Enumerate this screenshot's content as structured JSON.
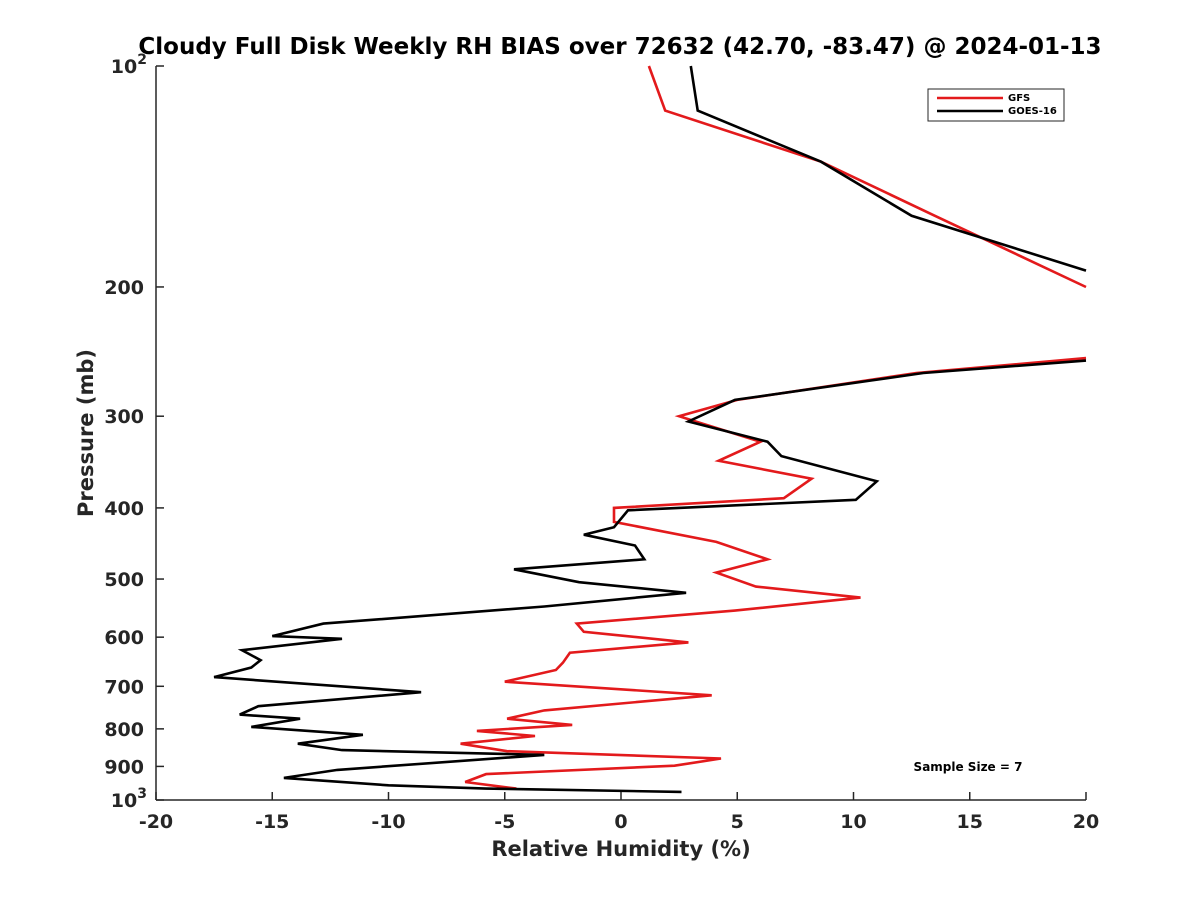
{
  "chart_data": {
    "type": "line",
    "title": "Cloudy Full Disk Weekly RH BIAS over 72632 (42.70, -83.47) @ 2024-01-13",
    "xlabel": "Relative Humidity (%)",
    "ylabel": "Pressure (mb)",
    "xlim": [
      -20,
      20
    ],
    "ylim": [
      100,
      1000
    ],
    "y_scale": "log",
    "y_reversed": true,
    "grid": false,
    "legend_position": "top-right",
    "x_ticks": [
      {
        "value": -20,
        "label": "-20"
      },
      {
        "value": -15,
        "label": "-15"
      },
      {
        "value": -10,
        "label": "-10"
      },
      {
        "value": -5,
        "label": "-5"
      },
      {
        "value": 0,
        "label": "0"
      },
      {
        "value": 5,
        "label": "5"
      },
      {
        "value": 10,
        "label": "10"
      },
      {
        "value": 15,
        "label": "15"
      },
      {
        "value": 20,
        "label": "20"
      }
    ],
    "y_ticks": [
      {
        "value": 100,
        "base": "10",
        "exp": "2"
      },
      {
        "value": 200,
        "base": "200",
        "exp": ""
      },
      {
        "value": 300,
        "base": "300",
        "exp": ""
      },
      {
        "value": 400,
        "base": "400",
        "exp": ""
      },
      {
        "value": 500,
        "base": "500",
        "exp": ""
      },
      {
        "value": 600,
        "base": "600",
        "exp": ""
      },
      {
        "value": 700,
        "base": "700",
        "exp": ""
      },
      {
        "value": 800,
        "base": "800",
        "exp": ""
      },
      {
        "value": 900,
        "base": "900",
        "exp": ""
      },
      {
        "value": 1000,
        "base": "10",
        "exp": "3"
      }
    ],
    "annotation": "Sample Size = 7",
    "series": [
      {
        "name": "GFS",
        "color": "#e31a1c",
        "segments": [
          [
            [
              1.2,
              100
            ],
            [
              1.9,
              115
            ],
            [
              8.6,
              135
            ],
            [
              13.5,
              160
            ],
            [
              20,
              200
            ]
          ],
          [
            [
              20,
              250
            ],
            [
              12.7,
              262
            ],
            [
              5.0,
              285
            ],
            [
              2.5,
              300
            ],
            [
              3.5,
              307
            ],
            [
              6,
              325
            ],
            [
              4.2,
              345
            ],
            [
              8.2,
              365
            ],
            [
              7,
              388
            ],
            [
              -0.3,
              400
            ],
            [
              -0.3,
              418
            ],
            [
              4.1,
              445
            ],
            [
              6.3,
              470
            ],
            [
              4.1,
              490
            ],
            [
              5.8,
              512
            ],
            [
              10.3,
              530
            ],
            [
              4.9,
              552
            ],
            [
              -1.9,
              575
            ],
            [
              -1.6,
              590
            ],
            [
              2.9,
              610
            ],
            [
              -2.2,
              630
            ],
            [
              -2.5,
              650
            ],
            [
              -2.8,
              665
            ],
            [
              -5,
              690
            ],
            [
              3.9,
              720
            ],
            [
              -3.3,
              755
            ],
            [
              -4.9,
              775
            ],
            [
              -2.1,
              790
            ],
            [
              -6.2,
              805
            ],
            [
              -3.7,
              818
            ],
            [
              -6.9,
              838
            ],
            [
              -4.9,
              858
            ],
            [
              4.3,
              878
            ],
            [
              2.3,
              898
            ],
            [
              -5.8,
              922
            ],
            [
              -6.7,
              945
            ],
            [
              -4.5,
              965
            ]
          ]
        ]
      },
      {
        "name": "GOES-16",
        "color": "#000000",
        "segments": [
          [
            [
              3.0,
              100
            ],
            [
              3.3,
              115
            ],
            [
              8.6,
              135
            ],
            [
              12.5,
              160
            ],
            [
              20,
              190
            ]
          ],
          [
            [
              20,
              252
            ],
            [
              13,
              262
            ],
            [
              4.9,
              285
            ],
            [
              2.9,
              305
            ],
            [
              6.3,
              325
            ],
            [
              6.9,
              340
            ],
            [
              11,
              368
            ],
            [
              10.1,
              390
            ],
            [
              0.3,
              403
            ],
            [
              -0.3,
              425
            ],
            [
              -1.6,
              435
            ],
            [
              0.6,
              450
            ],
            [
              1.0,
              470
            ],
            [
              -4.6,
              485
            ],
            [
              -1.8,
              505
            ],
            [
              2.8,
              522
            ],
            [
              -3.3,
              545
            ],
            [
              -12.8,
              575
            ],
            [
              -15.0,
              598
            ],
            [
              -12.0,
              603
            ],
            [
              -16.3,
              625
            ],
            [
              -15.5,
              645
            ],
            [
              -15.9,
              660
            ],
            [
              -17.5,
              680
            ],
            [
              -8.6,
              713
            ],
            [
              -15.6,
              745
            ],
            [
              -16.4,
              765
            ],
            [
              -13.8,
              775
            ],
            [
              -15.9,
              795
            ],
            [
              -11.1,
              815
            ],
            [
              -13.9,
              838
            ],
            [
              -12.0,
              855
            ],
            [
              -3.3,
              868
            ],
            [
              -12.2,
              910
            ],
            [
              -14.5,
              933
            ],
            [
              -10.0,
              955
            ],
            [
              -5.8,
              965
            ],
            [
              2.6,
              975
            ]
          ]
        ]
      }
    ]
  }
}
